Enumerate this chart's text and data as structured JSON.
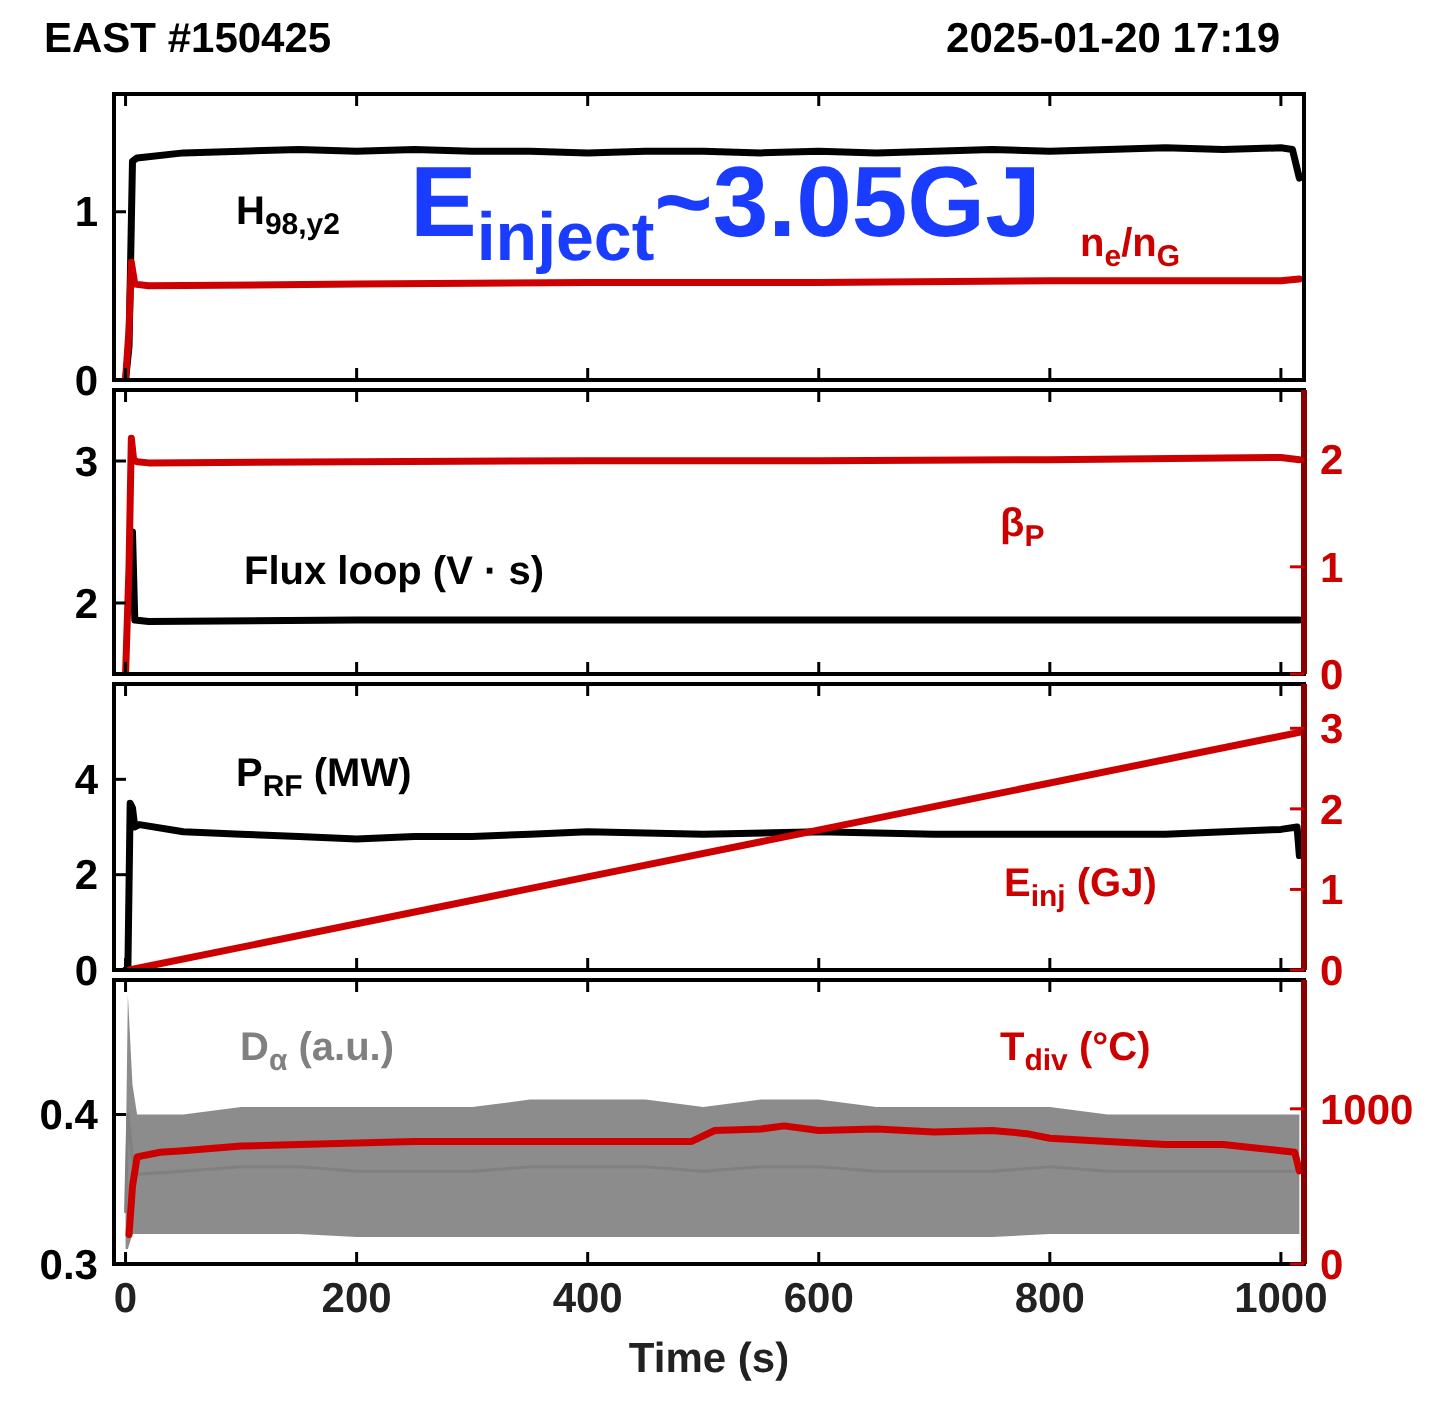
{
  "chart_data": [
    {
      "type": "line",
      "title": "EAST #150425",
      "annotations": [
        "2025-01-20 17:19",
        "E$_{inject}$~3.05GJ"
      ],
      "xlim": [
        -10,
        1020
      ],
      "xticks": [
        {
          "value": 0,
          "label": null
        },
        {
          "value": 200,
          "label": null
        },
        {
          "value": 400,
          "label": null
        },
        {
          "value": 600,
          "label": null
        },
        {
          "value": 800,
          "label": null
        },
        {
          "value": 1000,
          "label": null
        }
      ],
      "ylim": [
        0,
        1.7
      ],
      "yticks": [
        0,
        1
      ],
      "tick_labels": "y",
      "series": [
        {
          "name": "H$_{98,y2}$",
          "color": "#000000",
          "x": [
            0,
            3,
            6,
            10,
            50,
            100,
            150,
            200,
            250,
            300,
            350,
            400,
            450,
            500,
            550,
            600,
            650,
            700,
            750,
            800,
            850,
            900,
            950,
            1000,
            1010,
            1016
          ],
          "values": [
            0,
            0.2,
            1.3,
            1.32,
            1.35,
            1.36,
            1.37,
            1.36,
            1.37,
            1.36,
            1.36,
            1.35,
            1.36,
            1.36,
            1.35,
            1.36,
            1.35,
            1.36,
            1.37,
            1.36,
            1.37,
            1.38,
            1.37,
            1.38,
            1.37,
            1.2
          ]
        },
        {
          "name": "n$_{e}$/n$_{G}$",
          "color": "#cc0000",
          "x": [
            0,
            3,
            5,
            8,
            20,
            200,
            400,
            600,
            800,
            1000,
            1016
          ],
          "values": [
            0,
            0.3,
            0.7,
            0.57,
            0.56,
            0.57,
            0.58,
            0.58,
            0.59,
            0.59,
            0.6
          ]
        }
      ]
    },
    {
      "type": "line",
      "xlim": [
        -10,
        1020
      ],
      "xticks": [
        {
          "value": 0,
          "label": null
        },
        {
          "value": 200,
          "label": null
        },
        {
          "value": 400,
          "label": null
        },
        {
          "value": 600,
          "label": null
        },
        {
          "value": 800,
          "label": null
        },
        {
          "value": 1000,
          "label": null
        }
      ],
      "ylim": [
        1.5,
        3.5
      ],
      "yticks": [
        2,
        3
      ],
      "y2lim": [
        0,
        2.65
      ],
      "y2ticks": [
        0,
        1,
        2
      ],
      "tick_labels": "y",
      "series": [
        {
          "name": "Flux loop (V · s)",
          "color": "#000000",
          "x": [
            6,
            8,
            20,
            200,
            400,
            600,
            800,
            1000,
            1016
          ],
          "values": [
            2.5,
            1.88,
            1.87,
            1.88,
            1.88,
            1.88,
            1.88,
            1.88,
            1.88
          ]
        },
        {
          "name": "β$_{P}$",
          "color": "#cc0000",
          "axis": "y2",
          "x": [
            0,
            3,
            5,
            7,
            10,
            20,
            200,
            400,
            600,
            800,
            1000,
            1016
          ],
          "values": [
            0,
            1,
            2.2,
            2.0,
            1.98,
            1.97,
            1.98,
            1.99,
            1.99,
            2.0,
            2.02,
            2.0
          ]
        }
      ]
    },
    {
      "type": "line",
      "xlim": [
        -10,
        1020
      ],
      "xticks": [
        {
          "value": 0,
          "label": null
        },
        {
          "value": 200,
          "label": null
        },
        {
          "value": 400,
          "label": null
        },
        {
          "value": 600,
          "label": null
        },
        {
          "value": 800,
          "label": null
        },
        {
          "value": 1000,
          "label": null
        }
      ],
      "ylim": [
        0,
        6
      ],
      "yticks": [
        0,
        2,
        4
      ],
      "y2lim": [
        0,
        3.55
      ],
      "y2ticks": [
        0,
        1,
        2,
        3
      ],
      "tick_labels": "y",
      "series": [
        {
          "name": "P$_{RF}$ (MW)",
          "color": "#000000",
          "x": [
            0,
            2,
            4,
            6,
            8,
            12,
            50,
            100,
            150,
            200,
            250,
            300,
            350,
            400,
            500,
            600,
            700,
            800,
            900,
            1000,
            1014,
            1016
          ],
          "values": [
            0,
            0,
            3.5,
            3.4,
            3.0,
            3.05,
            2.9,
            2.85,
            2.8,
            2.75,
            2.8,
            2.8,
            2.85,
            2.9,
            2.85,
            2.9,
            2.85,
            2.85,
            2.85,
            2.95,
            3.0,
            2.4
          ]
        },
        {
          "name": "E$_{inj}$ (GJ)",
          "color": "#cc0000",
          "axis": "y2",
          "x": [
            3,
            1016
          ],
          "values": [
            0,
            2.95
          ]
        }
      ]
    },
    {
      "type": "line",
      "xlabel": "Time (s)",
      "xlim": [
        -10,
        1020
      ],
      "xticks": [
        0,
        200,
        400,
        600,
        800,
        1000
      ],
      "ylim": [
        0.3,
        0.49
      ],
      "yticks": [
        0.3,
        0.4
      ],
      "y2lim": [
        0,
        1830
      ],
      "y2ticks": [
        0,
        1000
      ],
      "series": [
        {
          "name": "D$_{α}$ (a.u.)",
          "color": "#808080",
          "x": [
            0,
            2,
            6,
            10,
            50,
            100,
            150,
            200,
            250,
            300,
            350,
            400,
            450,
            500,
            550,
            600,
            650,
            700,
            750,
            800,
            850,
            900,
            950,
            1000,
            1016
          ],
          "values": [
            0.335,
            0.4,
            0.37,
            0.36,
            0.362,
            0.365,
            0.365,
            0.362,
            0.362,
            0.362,
            0.365,
            0.365,
            0.365,
            0.362,
            0.365,
            0.365,
            0.362,
            0.362,
            0.362,
            0.365,
            0.362,
            0.362,
            0.362,
            0.362,
            0.362
          ],
          "lower": [
            0.31,
            0.31,
            0.32,
            0.32,
            0.32,
            0.32,
            0.32,
            0.318,
            0.318,
            0.318,
            0.318,
            0.318,
            0.318,
            0.318,
            0.318,
            0.318,
            0.318,
            0.318,
            0.318,
            0.32,
            0.32,
            0.32,
            0.32,
            0.32,
            0.32
          ],
          "upper": [
            0.36,
            0.48,
            0.42,
            0.4,
            0.4,
            0.405,
            0.405,
            0.405,
            0.405,
            0.405,
            0.41,
            0.41,
            0.41,
            0.405,
            0.41,
            0.41,
            0.405,
            0.405,
            0.405,
            0.405,
            0.4,
            0.4,
            0.4,
            0.4,
            0.4
          ]
        },
        {
          "name": "T$_{div}$ (°C)",
          "color": "#cc0000",
          "axis": "y2",
          "x": [
            3,
            6,
            10,
            30,
            50,
            100,
            150,
            200,
            250,
            300,
            350,
            400,
            450,
            490,
            510,
            550,
            570,
            600,
            650,
            700,
            750,
            780,
            800,
            850,
            900,
            950,
            1000,
            1012,
            1016
          ],
          "values": [
            190,
            500,
            690,
            720,
            730,
            760,
            770,
            780,
            790,
            790,
            790,
            790,
            790,
            790,
            860,
            870,
            890,
            860,
            870,
            850,
            860,
            840,
            810,
            790,
            770,
            770,
            730,
            720,
            600
          ]
        }
      ]
    }
  ]
}
